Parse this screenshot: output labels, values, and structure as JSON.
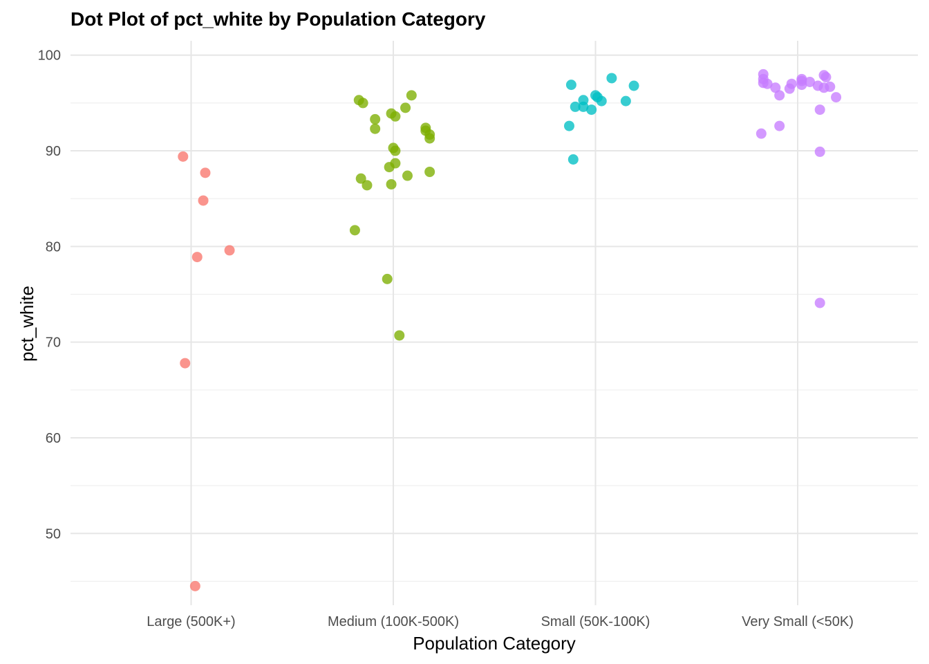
{
  "chart_data": {
    "type": "scatter",
    "title": "Dot Plot of pct_white by Population Category",
    "xlabel": "Population Category",
    "ylabel": "pct_white",
    "categories": [
      "Large (500K+)",
      "Medium (100K-500K)",
      "Small (50K-100K)",
      "Very Small (<50K)"
    ],
    "ylim": [
      42.5,
      101.5
    ],
    "yticks": [
      50,
      60,
      70,
      80,
      90,
      100
    ],
    "grid": true,
    "legend": "none",
    "series": [
      {
        "category": "Large (500K+)",
        "color": "#F8766D",
        "points": [
          {
            "jitter": -0.04,
            "y": 89.4
          },
          {
            "jitter": 0.07,
            "y": 87.7
          },
          {
            "jitter": 0.06,
            "y": 84.8
          },
          {
            "jitter": 0.19,
            "y": 79.6
          },
          {
            "jitter": 0.03,
            "y": 78.9
          },
          {
            "jitter": -0.03,
            "y": 67.8
          },
          {
            "jitter": 0.02,
            "y": 44.5
          }
        ]
      },
      {
        "category": "Medium (100K-500K)",
        "color": "#7CAE00",
        "points": [
          {
            "jitter": 0.09,
            "y": 95.8
          },
          {
            "jitter": -0.17,
            "y": 95.3
          },
          {
            "jitter": -0.15,
            "y": 95.0
          },
          {
            "jitter": 0.06,
            "y": 94.5
          },
          {
            "jitter": -0.01,
            "y": 93.9
          },
          {
            "jitter": 0.01,
            "y": 93.6
          },
          {
            "jitter": -0.09,
            "y": 93.3
          },
          {
            "jitter": 0.16,
            "y": 92.4
          },
          {
            "jitter": -0.09,
            "y": 92.3
          },
          {
            "jitter": 0.16,
            "y": 92.1
          },
          {
            "jitter": 0.18,
            "y": 91.7
          },
          {
            "jitter": 0.18,
            "y": 91.3
          },
          {
            "jitter": 0.0,
            "y": 90.3
          },
          {
            "jitter": 0.01,
            "y": 90.0
          },
          {
            "jitter": 0.01,
            "y": 88.7
          },
          {
            "jitter": -0.02,
            "y": 88.3
          },
          {
            "jitter": 0.18,
            "y": 87.8
          },
          {
            "jitter": 0.07,
            "y": 87.4
          },
          {
            "jitter": -0.16,
            "y": 87.1
          },
          {
            "jitter": -0.01,
            "y": 86.5
          },
          {
            "jitter": -0.13,
            "y": 86.4
          },
          {
            "jitter": -0.19,
            "y": 81.7
          },
          {
            "jitter": -0.03,
            "y": 76.6
          },
          {
            "jitter": 0.03,
            "y": 70.7
          }
        ]
      },
      {
        "category": "Small (50K-100K)",
        "color": "#00BFC4",
        "points": [
          {
            "jitter": 0.08,
            "y": 97.6
          },
          {
            "jitter": -0.12,
            "y": 96.9
          },
          {
            "jitter": 0.19,
            "y": 96.8
          },
          {
            "jitter": 0.0,
            "y": 95.8
          },
          {
            "jitter": 0.01,
            "y": 95.6
          },
          {
            "jitter": -0.06,
            "y": 95.3
          },
          {
            "jitter": 0.03,
            "y": 95.2
          },
          {
            "jitter": 0.15,
            "y": 95.2
          },
          {
            "jitter": -0.1,
            "y": 94.6
          },
          {
            "jitter": -0.06,
            "y": 94.6
          },
          {
            "jitter": -0.02,
            "y": 94.3
          },
          {
            "jitter": -0.13,
            "y": 92.6
          },
          {
            "jitter": -0.11,
            "y": 89.1
          }
        ]
      },
      {
        "category": "Very Small (<50K)",
        "color": "#C77CFF",
        "points": [
          {
            "jitter": -0.17,
            "y": 98.0
          },
          {
            "jitter": 0.13,
            "y": 97.9
          },
          {
            "jitter": -0.17,
            "y": 97.5
          },
          {
            "jitter": 0.02,
            "y": 97.5
          },
          {
            "jitter": 0.14,
            "y": 97.7
          },
          {
            "jitter": 0.02,
            "y": 97.3
          },
          {
            "jitter": 0.06,
            "y": 97.2
          },
          {
            "jitter": -0.17,
            "y": 97.1
          },
          {
            "jitter": -0.15,
            "y": 97.0
          },
          {
            "jitter": -0.03,
            "y": 97.0
          },
          {
            "jitter": 0.02,
            "y": 96.9
          },
          {
            "jitter": 0.1,
            "y": 96.8
          },
          {
            "jitter": 0.16,
            "y": 96.7
          },
          {
            "jitter": -0.11,
            "y": 96.6
          },
          {
            "jitter": 0.13,
            "y": 96.6
          },
          {
            "jitter": -0.04,
            "y": 96.5
          },
          {
            "jitter": -0.09,
            "y": 95.8
          },
          {
            "jitter": 0.19,
            "y": 95.6
          },
          {
            "jitter": 0.11,
            "y": 94.3
          },
          {
            "jitter": -0.18,
            "y": 91.8
          },
          {
            "jitter": -0.09,
            "y": 92.6
          },
          {
            "jitter": 0.11,
            "y": 89.9
          },
          {
            "jitter": 0.11,
            "y": 74.1
          }
        ]
      }
    ]
  }
}
